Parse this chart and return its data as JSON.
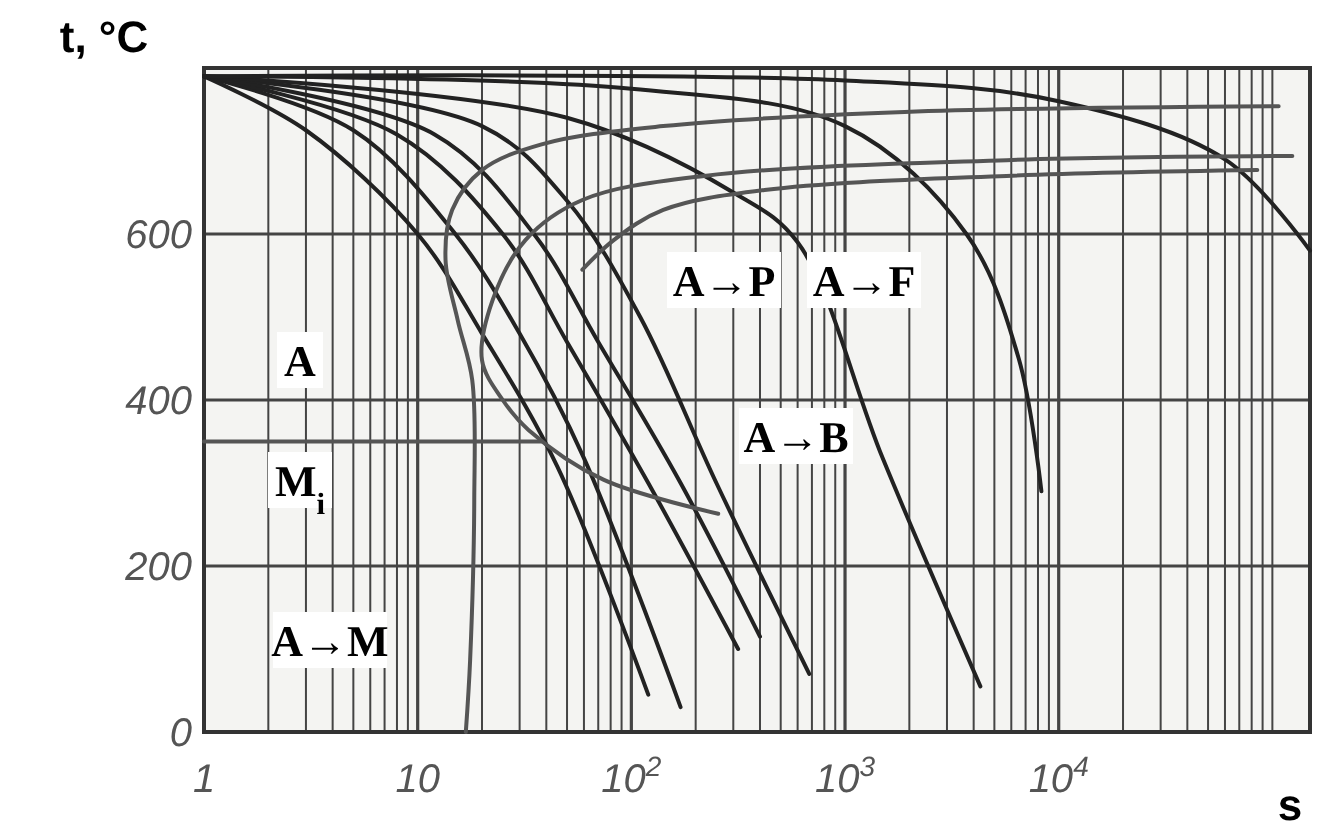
{
  "chart_data": {
    "type": "line",
    "xlabel": "s",
    "ylabel": "t, °C",
    "log": "x",
    "grid": true,
    "marker": "none",
    "line_style": "solid",
    "xlim": [
      1,
      150000
    ],
    "ylim": [
      0,
      800
    ],
    "xticks": [
      {
        "value": 1,
        "label": "1"
      },
      {
        "value": 2,
        "label": null
      },
      {
        "value": 3,
        "label": null
      },
      {
        "value": 4,
        "label": null
      },
      {
        "value": 5,
        "label": null
      },
      {
        "value": 6,
        "label": null
      },
      {
        "value": 7,
        "label": null
      },
      {
        "value": 8,
        "label": null
      },
      {
        "value": 9,
        "label": null
      },
      {
        "value": 10,
        "label": "10"
      },
      {
        "value": 20,
        "label": null
      },
      {
        "value": 30,
        "label": null
      },
      {
        "value": 40,
        "label": null
      },
      {
        "value": 50,
        "label": null
      },
      {
        "value": 60,
        "label": null
      },
      {
        "value": 70,
        "label": null
      },
      {
        "value": 80,
        "label": null
      },
      {
        "value": 90,
        "label": null
      },
      {
        "value": 100,
        "label": "10$^{2}$"
      },
      {
        "value": 200,
        "label": null
      },
      {
        "value": 300,
        "label": null
      },
      {
        "value": 400,
        "label": null
      },
      {
        "value": 500,
        "label": null
      },
      {
        "value": 600,
        "label": null
      },
      {
        "value": 700,
        "label": null
      },
      {
        "value": 800,
        "label": null
      },
      {
        "value": 900,
        "label": null
      },
      {
        "value": 1000,
        "label": "10$^{3}$"
      },
      {
        "value": 2000,
        "label": null
      },
      {
        "value": 3000,
        "label": null
      },
      {
        "value": 4000,
        "label": null
      },
      {
        "value": 5000,
        "label": null
      },
      {
        "value": 6000,
        "label": null
      },
      {
        "value": 7000,
        "label": null
      },
      {
        "value": 8000,
        "label": null
      },
      {
        "value": 9000,
        "label": null
      },
      {
        "value": 10000,
        "label": "10$^{4}$"
      },
      {
        "value": 20000,
        "label": null
      },
      {
        "value": 30000,
        "label": null
      },
      {
        "value": 40000,
        "label": null
      },
      {
        "value": 50000,
        "label": null
      },
      {
        "value": 60000,
        "label": null
      },
      {
        "value": 70000,
        "label": null
      },
      {
        "value": 80000,
        "label": null
      },
      {
        "value": 90000,
        "label": null
      },
      {
        "value": 100000,
        "label": null
      }
    ],
    "yticks": [
      0,
      200,
      400,
      600
    ],
    "series": [
      {
        "color": "#222222",
        "x": [
          1,
          3,
          10,
          20,
          45,
          120
        ],
        "values": [
          790,
          725,
          600,
          480,
          320,
          45
        ]
      },
      {
        "color": "#222222",
        "x": [
          1,
          5,
          15,
          30,
          60,
          170
        ],
        "values": [
          790,
          725,
          600,
          480,
          330,
          30
        ]
      },
      {
        "color": "#222222",
        "x": [
          1,
          8,
          25,
          50,
          120,
          316
        ],
        "values": [
          790,
          720,
          600,
          470,
          300,
          100
        ]
      },
      {
        "color": "#222222",
        "x": [
          1,
          12,
          35,
          70,
          170,
          400
        ],
        "values": [
          790,
          720,
          600,
          470,
          300,
          115
        ]
      },
      {
        "color": "#222222",
        "x": [
          1,
          20,
          50,
          110,
          250,
          680
        ],
        "values": [
          790,
          730,
          640,
          500,
          300,
          70
        ]
      },
      {
        "color": "#222222",
        "x": [
          1,
          50,
          300,
          600,
          1500,
          4300
        ],
        "values": [
          790,
          740,
          650,
          590,
          330,
          55
        ]
      },
      {
        "color": "#222222",
        "x": [
          1,
          100,
          1000,
          3700,
          6500,
          8300
        ],
        "values": [
          790,
          775,
          730,
          600,
          450,
          290
        ]
      },
      {
        "color": "#222222",
        "x": [
          1,
          1000,
          10000,
          60000,
          150000
        ],
        "values": [
          790,
          785,
          760,
          690,
          580
        ]
      },
      {
        "color": "#555555",
        "x": [
          107000,
          1900,
          141,
          38,
          20,
          14.5,
          13.5,
          15.4,
          18,
          18.4,
          17.6,
          16.8
        ],
        "values": [
          754,
          747,
          730,
          708,
          677,
          629,
          569,
          496,
          424,
          280,
          87,
          0
        ]
      },
      {
        "color": "#555555",
        "x": [
          124000,
          5700,
          219,
          59,
          32,
          22.4,
          20,
          25,
          33,
          74,
          255
        ],
        "values": [
          694,
          689,
          670,
          641,
          593,
          520,
          448,
          400,
          364,
          304,
          263
        ]
      },
      {
        "color": "#555555",
        "x": [
          85000,
          5700,
          420,
          141,
          83,
          59
        ],
        "values": [
          677,
          670,
          653,
          629,
          593,
          557
        ]
      },
      {
        "color": "#555555",
        "x": [
          1,
          38
        ],
        "values": [
          350,
          350
        ]
      }
    ],
    "annotations": [
      "A",
      "M$_{i}$",
      "A→M",
      "A→P",
      "A→F",
      "A→B"
    ]
  }
}
